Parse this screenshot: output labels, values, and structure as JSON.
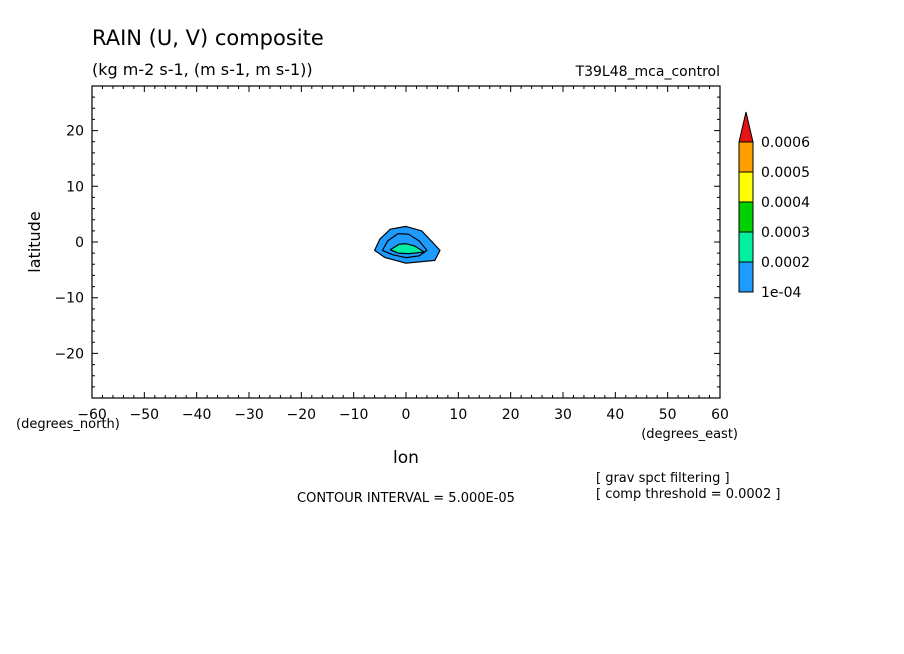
{
  "chart_data": {
    "type": "contour",
    "title": "RAIN (U, V) composite",
    "units_line": "(kg m-2 s-1, (m s-1, m s-1))",
    "run_label": "T39L48_mca_control",
    "xlabel": "lon",
    "ylabel": "latitude",
    "x_units": "(degrees_east)",
    "y_units": "(degrees_north)",
    "xlim": [
      -60,
      60
    ],
    "ylim": [
      -28,
      28
    ],
    "x_ticks": [
      -60,
      -50,
      -40,
      -30,
      -20,
      -10,
      0,
      10,
      20,
      30,
      40,
      50,
      60
    ],
    "y_ticks": [
      -20,
      -10,
      0,
      10,
      20
    ],
    "colorbar": {
      "labels": [
        "1e-04",
        "0.0002",
        "0.0003",
        "0.0004",
        "0.0005",
        "0.0006"
      ],
      "colors": [
        "#1e9bff",
        "#00f0a0",
        "#00d200",
        "#ffff00",
        "#ffa000",
        "#e61414"
      ]
    },
    "contours": [
      {
        "level": 0.0001,
        "fill": "#1e9bff",
        "points": [
          [
            -6,
            -1.5
          ],
          [
            -5,
            0.5
          ],
          [
            -3,
            2.3
          ],
          [
            0,
            2.8
          ],
          [
            3,
            2
          ],
          [
            5,
            0
          ],
          [
            6.5,
            -1.5
          ],
          [
            5.5,
            -3.3
          ],
          [
            0,
            -3.8
          ],
          [
            -4,
            -2.8
          ]
        ]
      },
      {
        "level": 0.00015,
        "fill": "none",
        "points": [
          [
            -4.5,
            -1.5
          ],
          [
            -3.5,
            0.2
          ],
          [
            -1.5,
            1.5
          ],
          [
            0.5,
            1.4
          ],
          [
            2.5,
            0.2
          ],
          [
            4,
            -1.5
          ],
          [
            2.5,
            -2.5
          ],
          [
            0,
            -2.8
          ],
          [
            -2.5,
            -2.3
          ]
        ]
      },
      {
        "level": 0.0002,
        "fill": "#00f0a0",
        "points": [
          [
            -3,
            -1.4
          ],
          [
            -1.3,
            -0.4
          ],
          [
            0,
            -0.3
          ],
          [
            1.6,
            -0.7
          ],
          [
            3.5,
            -1.8
          ],
          [
            0.5,
            -2.1
          ],
          [
            -1.5,
            -2
          ]
        ]
      }
    ],
    "notes": [
      "CONTOUR INTERVAL = 5.000E-05",
      "[ grav spct filtering ]",
      "[ comp threshold = 0.0002 ]"
    ]
  }
}
